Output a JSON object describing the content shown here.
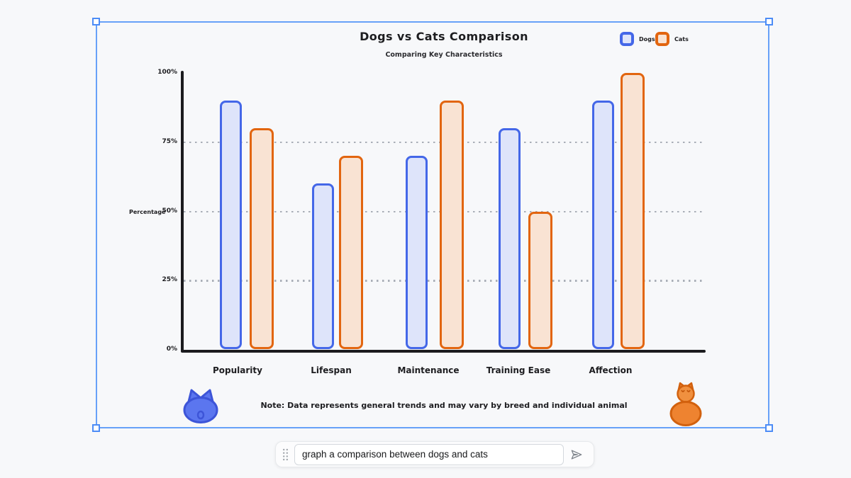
{
  "chart_data": {
    "type": "bar",
    "title": "Dogs vs Cats Comparison",
    "subtitle": "Comparing Key Characteristics",
    "categories": [
      "Popularity",
      "Lifespan",
      "Maintenance",
      "Training Ease",
      "Affection"
    ],
    "series": [
      {
        "name": "Dogs",
        "values": [
          90,
          60,
          70,
          80,
          90
        ],
        "stroke": "#4467e8",
        "fill": "#dee4fa"
      },
      {
        "name": "Cats",
        "values": [
          80,
          70,
          90,
          50,
          100
        ],
        "stroke": "#e2650f",
        "fill": "#f9e3d3"
      }
    ],
    "xlabel": "",
    "ylabel": "Percentage",
    "ylim": [
      0,
      100
    ],
    "yticks": [
      "100%",
      "75%",
      "50%",
      "25%",
      "0%"
    ],
    "ytick_values": [
      100,
      75,
      50,
      25,
      0
    ],
    "gridline_values": [
      75,
      50,
      25
    ],
    "grid": "horizontal dotted",
    "legend_position": "top-right",
    "note": "Note: Data represents general trends and may vary by breed and individual animal",
    "axis_color": "#1b1b1e",
    "gridline_color": "#a9aeb7"
  },
  "decorations": {
    "dog_icon_color": "#5b76ef",
    "dog_icon_stroke": "#3d55d8",
    "cat_icon_color": "#ee8330",
    "cat_icon_stroke": "#d2610e"
  },
  "selection": {
    "border_color": "#67a1f8"
  },
  "prompt_bar": {
    "value": "graph a comparison between dogs and cats"
  }
}
